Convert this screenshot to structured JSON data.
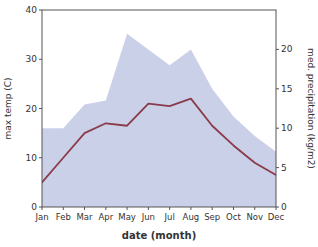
{
  "chart_data": {
    "type": "line",
    "xlabel": "date (month)",
    "ylabel": "max temp (C)",
    "y2label": "med. precipitation (kg/m2)",
    "categories": [
      "Jan",
      "Feb",
      "Mar",
      "Apr",
      "May",
      "Jun",
      "Jul",
      "Aug",
      "Sep",
      "Oct",
      "Nov",
      "Dec"
    ],
    "series": [
      {
        "type": "area",
        "axis": "y2",
        "color": "#b8c0e0",
        "values": [
          10.0,
          10.0,
          13.0,
          13.5,
          22.0,
          20.0,
          18.0,
          20.0,
          15.0,
          11.5,
          9.0,
          7.0
        ]
      },
      {
        "type": "line",
        "color": "#8b3a4a",
        "values": [
          5.0,
          10.0,
          15.0,
          17.0,
          16.5,
          21.0,
          20.5,
          22.0,
          16.5,
          12.5,
          9.0,
          6.5
        ]
      }
    ],
    "ylim": [
      0,
      40
    ],
    "yticks": [
      0,
      10,
      20,
      30,
      40
    ],
    "y2lim": [
      0,
      25
    ],
    "y2ticks": [
      0,
      5,
      10,
      15,
      20
    ],
    "grid": false
  }
}
